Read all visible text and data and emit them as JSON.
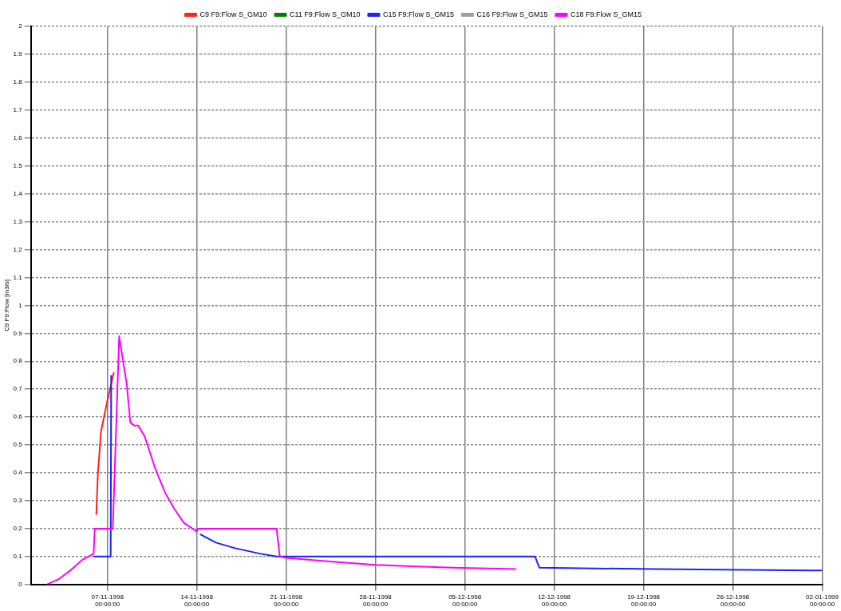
{
  "chart_data": {
    "type": "line",
    "ylabel": "C9 F9:Flow [m3/s]",
    "xlim": [
      "1998-11-01",
      "1999-01-02"
    ],
    "xticks": [
      {
        "value": "1998-11-07",
        "label": "07-11-1998 00:00:00"
      },
      {
        "value": "1998-11-14",
        "label": "14-11-1998 00:00:00"
      },
      {
        "value": "1998-11-21",
        "label": "21-11-1998 00:00:00"
      },
      {
        "value": "1998-11-28",
        "label": "28-11-1998 00:00:00"
      },
      {
        "value": "1998-12-05",
        "label": "05-12-1998 00:00:00"
      },
      {
        "value": "1998-12-12",
        "label": "12-12-1998 00:00:00"
      },
      {
        "value": "1998-12-19",
        "label": "19-12-1998 00:00:00"
      },
      {
        "value": "1998-12-26",
        "label": "26-12-1998 00:00:00"
      },
      {
        "value": "1999-01-02",
        "label": "02-01-1999 00:00:00"
      }
    ],
    "ylim": [
      0,
      2
    ],
    "yticks": [
      0,
      0.1,
      0.2,
      0.3,
      0.4,
      0.5,
      0.6,
      0.7,
      0.8,
      0.9,
      1,
      1.1,
      1.2,
      1.3,
      1.4,
      1.5,
      1.6,
      1.7,
      1.8,
      1.9,
      2
    ],
    "grid": true,
    "legend": "top",
    "marker": "none",
    "line_style": "solid",
    "series": [
      {
        "name": "C9 F9:Flow S_GM10",
        "color": "#ff2020",
        "x": [
          "1998-11-06T03:00",
          "1998-11-06T06:00",
          "1998-11-06T12:00",
          "1998-11-07T00:00",
          "1998-11-07T12:00"
        ],
        "values": [
          0.25,
          0.4,
          0.55,
          0.66,
          0.76
        ]
      },
      {
        "name": "C11 F9:Flow S_GM10",
        "color": "#008000"
      },
      {
        "name": "C15 F9:Flow S_GM15",
        "color": "#2020ff",
        "x": [
          "1998-11-05T22:00",
          "1998-11-07T06:00",
          "1998-11-07T07:00",
          "1998-11-10T00:00",
          "1998-11-14T06:00",
          "1998-11-15T12:00",
          "1998-11-17T00:00",
          "1998-11-19T00:00",
          "1998-11-20T06:00",
          "1998-12-10T12:00",
          "1998-12-10T20:00",
          "1998-12-20T00:00",
          "1999-01-02T00:00"
        ],
        "values": [
          0.1,
          0.1,
          0.75,
          null,
          0.18,
          0.15,
          0.13,
          0.11,
          0.1,
          0.1,
          0.06,
          0.055,
          0.05
        ]
      },
      {
        "name": "C16 F9:Flow S_GM15",
        "color": "#a0a0a0"
      },
      {
        "name": "C18 F9:Flow S_GM15",
        "color": "#ff00ff",
        "x": [
          "1998-11-02T06:00",
          "1998-11-03T05:00",
          "1998-11-04T02:00",
          "1998-11-05T02:00",
          "1998-11-05T12:00",
          "1998-11-05T22:00",
          "1998-11-06T00:00",
          "1998-11-07T10:00",
          "1998-11-07T22:00",
          "1998-11-08T12:00",
          "1998-11-08T19:00",
          "1998-11-09T02:00",
          "1998-11-09T10:00",
          "1998-11-09T22:00",
          "1998-11-10T17:00",
          "1998-11-11T12:00",
          "1998-11-12T06:00",
          "1998-11-13T00:00",
          "1998-11-14T00:00",
          "1998-11-14T02:00",
          "1998-11-20T06:00",
          "1998-11-20T12:00",
          "1998-11-21T00:00",
          "1998-11-25T00:00",
          "1998-11-28T00:00",
          "1998-12-04T00:00",
          "1998-12-09T00:00"
        ],
        "values": [
          0,
          0.02,
          0.05,
          0.09,
          0.1,
          0.11,
          0.2,
          0.2,
          0.89,
          0.72,
          0.58,
          0.57,
          0.57,
          0.53,
          0.42,
          0.33,
          0.27,
          0.22,
          0.19,
          0.2,
          0.2,
          0.1,
          0.095,
          0.08,
          0.07,
          0.06,
          0.055
        ]
      }
    ]
  }
}
